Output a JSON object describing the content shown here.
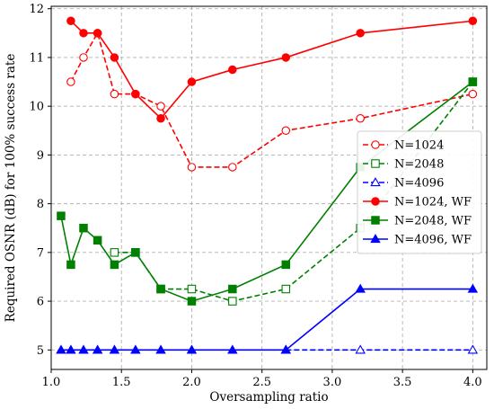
{
  "chart_data": {
    "type": "line",
    "title": "",
    "xlabel": "Oversampling ratio",
    "ylabel": "Required OSNR (dB) for 100% success rate",
    "xlim": [
      1.0,
      4.1
    ],
    "ylim": [
      4.6,
      12.05
    ],
    "xticks": [
      "1.0",
      "1.5",
      "2.0",
      "2.5",
      "3.0",
      "3.5",
      "4.0"
    ],
    "yticks": [
      "5",
      "6",
      "7",
      "8",
      "9",
      "10",
      "11",
      "12"
    ],
    "grid": true,
    "legend_position": "center-right",
    "series": [
      {
        "name": "N=1024",
        "color": "#ff0000",
        "line_style": "dashed",
        "marker": "circle-open",
        "x": [
          1.14,
          1.23,
          1.33,
          1.45,
          1.6,
          1.78,
          2.0,
          2.29,
          2.67,
          3.2,
          4.0
        ],
        "y": [
          10.5,
          11.0,
          11.5,
          10.25,
          10.25,
          10.0,
          8.75,
          8.75,
          9.5,
          9.75,
          10.25
        ]
      },
      {
        "name": "N=2048",
        "color": "#008000",
        "line_style": "dashed",
        "marker": "square-open",
        "x": [
          1.45,
          1.6,
          1.78,
          2.0,
          2.29,
          2.67,
          3.2,
          4.0
        ],
        "y": [
          7.0,
          7.0,
          6.25,
          6.25,
          6.0,
          6.25,
          7.5,
          10.5
        ]
      },
      {
        "name": "N=4096",
        "color": "#0000ff",
        "line_style": "dashed",
        "marker": "triangle-open",
        "x": [
          2.67,
          3.2,
          4.0
        ],
        "y": [
          5.0,
          5.0,
          5.0
        ]
      },
      {
        "name": "N=1024, WF",
        "color": "#ff0000",
        "line_style": "solid",
        "marker": "circle-filled",
        "x": [
          1.14,
          1.23,
          1.33,
          1.45,
          1.6,
          1.78,
          2.0,
          2.29,
          2.67,
          3.2,
          4.0
        ],
        "y": [
          11.75,
          11.5,
          11.5,
          11.0,
          10.25,
          9.75,
          10.5,
          10.75,
          11.0,
          11.5,
          11.75
        ]
      },
      {
        "name": "N=2048, WF",
        "color": "#008000",
        "line_style": "solid",
        "marker": "square-filled",
        "x": [
          1.07,
          1.14,
          1.23,
          1.33,
          1.45,
          1.6,
          1.78,
          2.0,
          2.29,
          2.67,
          3.2,
          4.0
        ],
        "y": [
          7.75,
          6.75,
          7.5,
          7.25,
          6.75,
          7.0,
          6.25,
          6.0,
          6.25,
          6.75,
          8.75,
          10.5
        ]
      },
      {
        "name": "N=4096, WF",
        "color": "#0000ff",
        "line_style": "solid",
        "marker": "triangle-filled",
        "x": [
          1.07,
          1.14,
          1.23,
          1.33,
          1.45,
          1.6,
          1.78,
          2.0,
          2.29,
          2.67,
          3.2,
          4.0
        ],
        "y": [
          5.0,
          5.0,
          5.0,
          5.0,
          5.0,
          5.0,
          5.0,
          5.0,
          5.0,
          5.0,
          6.25,
          6.25
        ]
      }
    ]
  }
}
